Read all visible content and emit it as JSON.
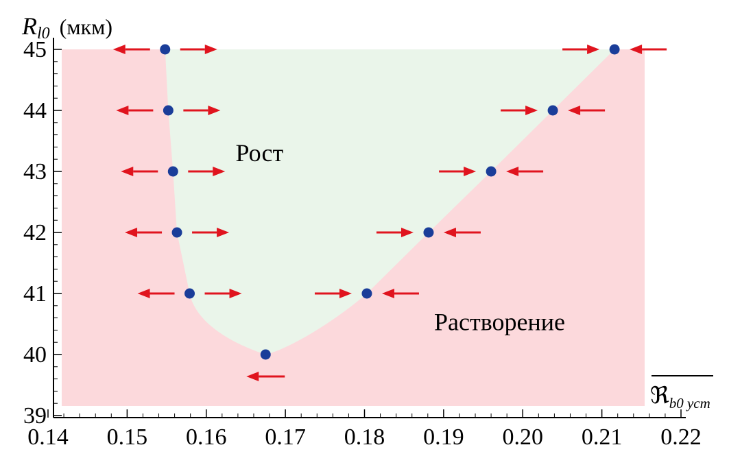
{
  "chart_data": {
    "type": "scatter",
    "title": "",
    "xlabel": "ℜ",
    "xlabel_sub": "b0 уст",
    "ylabel": "R",
    "ylabel_sub": "l0",
    "ylabel_unit": "(мкм)",
    "xlim": [
      0.14,
      0.22
    ],
    "ylim": [
      39,
      45
    ],
    "x_ticks": [
      "0.14",
      "0.15",
      "0.16",
      "0.17",
      "0.18",
      "0.19",
      "0.20",
      "0.21",
      "0.22"
    ],
    "y_ticks": [
      "39",
      "40",
      "41",
      "42",
      "43",
      "44",
      "45"
    ],
    "regions": [
      {
        "label": "Рост",
        "color": "#eaf5ea"
      },
      {
        "label": "Растворение",
        "color": "#fcd9dc"
      }
    ],
    "boundary": {
      "left": [
        [
          0.1548,
          45
        ],
        [
          0.1552,
          44
        ],
        [
          0.1558,
          43
        ],
        [
          0.1563,
          42
        ],
        [
          0.1579,
          41
        ],
        [
          0.1675,
          40
        ]
      ],
      "right": [
        [
          0.1675,
          40
        ],
        [
          0.1803,
          41
        ],
        [
          0.1881,
          42
        ],
        [
          0.196,
          43
        ],
        [
          0.2038,
          44
        ],
        [
          0.2116,
          45
        ]
      ]
    },
    "points": [
      {
        "x": 0.1548,
        "y": 45,
        "type": "unstable"
      },
      {
        "x": 0.1552,
        "y": 44,
        "type": "unstable"
      },
      {
        "x": 0.1558,
        "y": 43,
        "type": "unstable"
      },
      {
        "x": 0.1563,
        "y": 42,
        "type": "unstable"
      },
      {
        "x": 0.1579,
        "y": 41,
        "type": "unstable"
      },
      {
        "x": 0.1675,
        "y": 40,
        "type": "semi-stable"
      },
      {
        "x": 0.1803,
        "y": 41,
        "type": "stable"
      },
      {
        "x": 0.1881,
        "y": 42,
        "type": "stable"
      },
      {
        "x": 0.196,
        "y": 43,
        "type": "stable"
      },
      {
        "x": 0.2038,
        "y": 44,
        "type": "stable"
      },
      {
        "x": 0.2116,
        "y": 45,
        "type": "stable"
      }
    ],
    "point_color": "#1a3d99",
    "arrow_color": "#e0141e",
    "grid": false
  }
}
